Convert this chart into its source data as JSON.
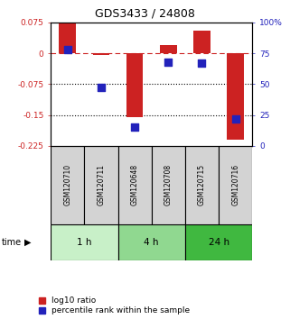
{
  "title": "GDS3433 / 24808",
  "samples": [
    "GSM120710",
    "GSM120711",
    "GSM120648",
    "GSM120708",
    "GSM120715",
    "GSM120716"
  ],
  "groups": [
    {
      "label": "1 h",
      "indices": [
        0,
        1
      ],
      "color": "#c8f0c8"
    },
    {
      "label": "4 h",
      "indices": [
        2,
        3
      ],
      "color": "#90d890"
    },
    {
      "label": "24 h",
      "indices": [
        4,
        5
      ],
      "color": "#40b840"
    }
  ],
  "log10_ratio": [
    0.075,
    -0.005,
    -0.155,
    0.02,
    0.055,
    -0.21
  ],
  "percentile_rank_pct": [
    78,
    47,
    15.5,
    68,
    67,
    22
  ],
  "ylim_left": [
    -0.225,
    0.075
  ],
  "ylim_right": [
    0,
    100
  ],
  "bar_color": "#cc2222",
  "dot_color": "#2222bb",
  "bar_width": 0.5,
  "dot_size": 28,
  "legend_labels": [
    "log10 ratio",
    "percentile rank within the sample"
  ]
}
